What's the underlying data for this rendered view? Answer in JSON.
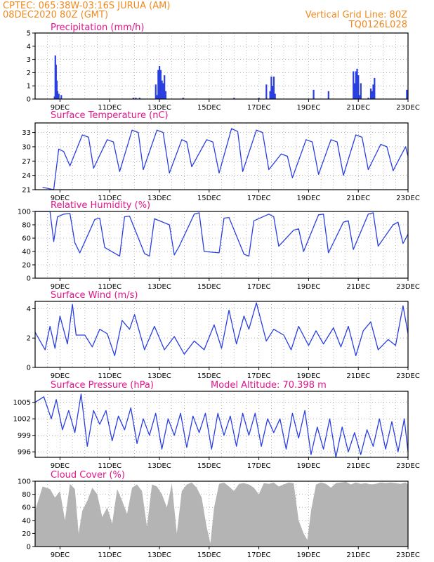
{
  "header": {
    "line1": "CPTEC:   065:38W-03:16S  JURUA (AM)",
    "line2": "08DEC2020 80Z (GMT)",
    "grid_note": "Vertical Grid Line: 80Z",
    "code": "TQ0126L028"
  },
  "colors": {
    "header": "#f08a1e",
    "title": "#e0158a",
    "line": "#2a3fe0",
    "cloud": "#b4b4b4",
    "grid": "#888888"
  },
  "x_ticks": [
    "9DEC",
    "11DEC",
    "13DEC",
    "15DEC",
    "17DEC",
    "19DEC",
    "21DEC",
    "23DEC"
  ],
  "chart_data": [
    {
      "type": "bar",
      "title": "Precipitation (mm/h)",
      "ylim": [
        0,
        5
      ],
      "yticks": [
        "0",
        "1",
        "2",
        "3",
        "4",
        "5"
      ],
      "x": [
        8.78,
        8.81,
        8.84,
        8.87,
        8.9,
        8.95,
        9.05,
        11.95,
        12.05,
        12.2,
        12.85,
        12.9,
        12.95,
        13.0,
        13.05,
        13.1,
        13.15,
        13.2,
        13.25,
        13.95,
        16.0,
        17.0,
        17.3,
        17.45,
        17.5,
        17.55,
        17.6,
        17.65,
        19.2,
        19.8,
        20.8,
        20.85,
        20.9,
        20.95,
        21.0,
        21.05,
        21.1,
        21.4,
        21.5,
        21.55,
        21.6,
        21.65,
        22.95
      ],
      "values": [
        0.2,
        3.3,
        2.6,
        1.4,
        0.6,
        0.4,
        0.3,
        0.1,
        0.1,
        0.1,
        1.1,
        0.3,
        2.2,
        2.5,
        2.2,
        1.4,
        1.2,
        1.8,
        0.6,
        0.1,
        0.1,
        0.1,
        1.1,
        0.6,
        1.7,
        1.0,
        1.7,
        0.4,
        0.7,
        0.6,
        2.1,
        1.2,
        2.1,
        2.3,
        1.8,
        0.3,
        1.2,
        0.1,
        0.8,
        0.6,
        1.1,
        1.6,
        0.7
      ]
    },
    {
      "type": "line",
      "title": "Surface Temperature (nC)",
      "ylim": [
        21,
        35
      ],
      "yticks": [
        "21",
        "24",
        "27",
        "30",
        "33"
      ],
      "x": [
        8.3,
        8.75,
        8.95,
        9.15,
        9.4,
        9.9,
        10.15,
        10.35,
        10.9,
        11.15,
        11.4,
        11.9,
        12.15,
        12.35,
        12.9,
        13.15,
        13.4,
        13.9,
        14.1,
        14.3,
        14.9,
        15.15,
        15.4,
        15.9,
        16.15,
        16.35,
        16.9,
        17.15,
        17.4,
        17.9,
        18.15,
        18.35,
        18.9,
        19.15,
        19.4,
        19.9,
        20.15,
        20.4,
        20.9,
        21.15,
        21.4,
        21.9,
        22.15,
        22.4,
        22.9,
        23.0
      ],
      "values": [
        21.5,
        21.0,
        29.5,
        29.0,
        26.0,
        32.5,
        32.0,
        25.5,
        31.5,
        31.0,
        24.8,
        33.5,
        33.0,
        25.2,
        33.5,
        33.0,
        24.5,
        31.5,
        31.0,
        25.8,
        31.5,
        31.0,
        24.5,
        33.8,
        33.2,
        24.8,
        33.5,
        33.0,
        25.2,
        28.5,
        28.0,
        23.5,
        31.5,
        31.0,
        24.2,
        31.5,
        31.0,
        24.0,
        32.5,
        32.0,
        25.2,
        30.5,
        30.0,
        25.0,
        30.0,
        28.0
      ]
    },
    {
      "type": "line",
      "title": "Relative Humidity (%)",
      "ylim": [
        0,
        100
      ],
      "yticks": [
        "0",
        "20",
        "40",
        "60",
        "80",
        "100"
      ],
      "x": [
        8.0,
        8.6,
        8.75,
        8.9,
        9.15,
        9.4,
        9.6,
        9.8,
        10.4,
        10.6,
        10.8,
        11.4,
        11.6,
        11.8,
        12.4,
        12.6,
        12.8,
        13.4,
        13.6,
        13.8,
        14.4,
        14.6,
        14.8,
        15.4,
        15.6,
        15.8,
        16.4,
        16.6,
        16.8,
        17.4,
        17.6,
        17.8,
        18.4,
        18.6,
        18.8,
        19.4,
        19.6,
        19.8,
        20.4,
        20.6,
        20.8,
        21.4,
        21.6,
        21.8,
        22.4,
        22.6,
        22.8,
        23.0
      ],
      "values": [
        100,
        100,
        55,
        92,
        96,
        97,
        53,
        38,
        88,
        90,
        46,
        33,
        92,
        93,
        37,
        33,
        89,
        80,
        35,
        48,
        96,
        98,
        40,
        38,
        90,
        91,
        36,
        33,
        86,
        96,
        92,
        48,
        72,
        74,
        40,
        95,
        96,
        38,
        84,
        86,
        43,
        96,
        98,
        48,
        80,
        84,
        52,
        66
      ]
    },
    {
      "type": "line",
      "title": "Surface Wind (m/s)",
      "ylim": [
        0,
        4.5
      ],
      "yticks": [
        "0",
        "2",
        "4"
      ],
      "x": [
        8.0,
        8.4,
        8.6,
        8.8,
        9.0,
        9.3,
        9.5,
        9.65,
        10.0,
        10.3,
        10.6,
        10.9,
        11.2,
        11.5,
        11.8,
        12.0,
        12.4,
        12.8,
        13.2,
        13.6,
        14.0,
        14.4,
        14.8,
        15.2,
        15.5,
        15.8,
        16.1,
        16.4,
        16.6,
        16.9,
        17.3,
        17.6,
        18.0,
        18.3,
        18.6,
        19.0,
        19.3,
        19.6,
        20.0,
        20.3,
        20.6,
        20.9,
        21.2,
        21.5,
        21.8,
        22.2,
        22.5,
        22.8,
        23.0
      ],
      "values": [
        2.4,
        1.2,
        2.8,
        1.3,
        3.5,
        1.6,
        4.3,
        2.2,
        2.2,
        1.4,
        2.6,
        2.3,
        0.8,
        3.2,
        2.6,
        3.6,
        1.2,
        2.8,
        1.2,
        2.1,
        0.9,
        1.8,
        1.2,
        2.9,
        1.3,
        3.9,
        1.6,
        3.5,
        2.6,
        4.4,
        1.8,
        2.6,
        2.2,
        1.2,
        2.8,
        1.5,
        2.5,
        1.6,
        2.7,
        1.4,
        2.8,
        0.8,
        2.5,
        3.1,
        1.2,
        1.9,
        1.5,
        4.2,
        2.3
      ]
    },
    {
      "type": "line",
      "title": "Surface Pressure (hPa)",
      "annotation": "Model Altitude: 70.398 m",
      "ylim": [
        995,
        1007
      ],
      "yticks": [
        "996",
        "999",
        "1002",
        "1005"
      ],
      "x": [
        8.0,
        8.35,
        8.65,
        8.85,
        9.1,
        9.35,
        9.6,
        9.85,
        10.1,
        10.35,
        10.6,
        10.85,
        11.1,
        11.35,
        11.6,
        11.85,
        12.1,
        12.35,
        12.6,
        12.85,
        13.1,
        13.35,
        13.6,
        13.85,
        14.1,
        14.35,
        14.6,
        14.85,
        15.1,
        15.35,
        15.6,
        15.85,
        16.1,
        16.35,
        16.6,
        16.85,
        17.1,
        17.35,
        17.6,
        17.85,
        18.1,
        18.35,
        18.6,
        18.85,
        19.1,
        19.35,
        19.6,
        19.85,
        20.1,
        20.35,
        20.6,
        20.85,
        21.1,
        21.35,
        21.6,
        21.85,
        22.1,
        22.35,
        22.6,
        22.85,
        23.0
      ],
      "values": [
        1005.0,
        1006.0,
        1002.0,
        1005.5,
        1000.0,
        1003.5,
        999.5,
        1006.5,
        997.0,
        1003.5,
        1001.0,
        1003.5,
        998.0,
        1002.5,
        1000.0,
        1004.0,
        997.5,
        1002.0,
        999.0,
        1003.0,
        996.5,
        1002.0,
        999.0,
        1003.0,
        996.8,
        1002.5,
        999.5,
        1003.0,
        996.5,
        1003.0,
        999.0,
        1002.5,
        997.0,
        1003.0,
        999.0,
        1003.0,
        997.0,
        1002.0,
        999.5,
        1002.0,
        996.5,
        1003.0,
        998.5,
        1003.5,
        995.5,
        1000.5,
        996.5,
        1002.0,
        995.0,
        1000.5,
        996.0,
        999.5,
        995.5,
        1000.0,
        997.0,
        1002.0,
        996.5,
        1001.5,
        996.0,
        1002.0,
        996.0
      ]
    },
    {
      "type": "area",
      "title": "Cloud Cover (%)",
      "ylim": [
        0,
        100
      ],
      "yticks": [
        "0",
        "20",
        "40",
        "60",
        "80",
        "100"
      ],
      "x": [
        8.0,
        8.3,
        8.6,
        8.8,
        9.0,
        9.2,
        9.4,
        9.6,
        9.75,
        9.9,
        10.1,
        10.3,
        10.5,
        10.7,
        10.9,
        11.1,
        11.3,
        11.5,
        11.7,
        11.9,
        12.1,
        12.3,
        12.5,
        12.7,
        12.9,
        13.1,
        13.3,
        13.5,
        13.7,
        13.9,
        14.1,
        14.3,
        14.5,
        14.7,
        14.9,
        15.05,
        15.2,
        15.4,
        15.6,
        15.8,
        16.0,
        16.2,
        16.4,
        16.6,
        16.8,
        17.0,
        17.2,
        17.4,
        17.6,
        17.8,
        18.0,
        18.2,
        18.4,
        18.6,
        18.8,
        18.95,
        19.1,
        19.3,
        19.5,
        19.7,
        19.9,
        20.1,
        20.3,
        20.5,
        20.7,
        20.9,
        21.1,
        21.3,
        21.5,
        21.7,
        21.9,
        22.1,
        22.3,
        22.5,
        22.7,
        22.9,
        23.0
      ],
      "values": [
        55,
        92,
        88,
        75,
        85,
        40,
        96,
        88,
        20,
        55,
        70,
        90,
        80,
        45,
        60,
        35,
        88,
        70,
        50,
        90,
        95,
        85,
        30,
        95,
        92,
        80,
        60,
        96,
        20,
        85,
        95,
        98,
        90,
        75,
        30,
        5,
        60,
        96,
        98,
        92,
        85,
        96,
        97,
        95,
        90,
        80,
        97,
        96,
        98,
        92,
        95,
        98,
        97,
        40,
        20,
        10,
        55,
        95,
        98,
        96,
        90,
        97,
        98,
        99,
        95,
        98,
        96,
        97,
        95,
        96,
        98,
        97,
        98,
        97,
        96,
        98,
        95
      ]
    }
  ]
}
